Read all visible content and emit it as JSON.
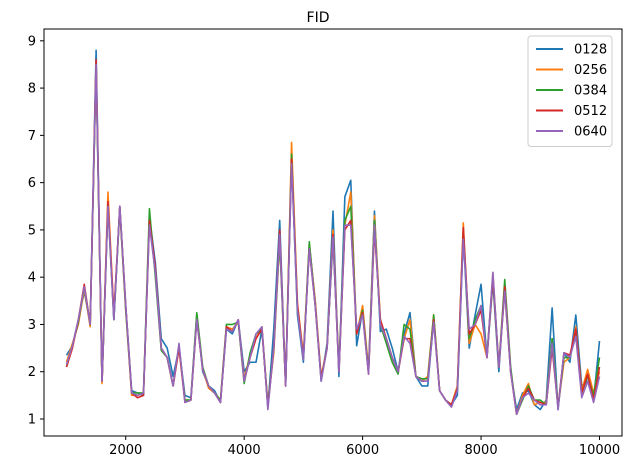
{
  "chart_data": {
    "type": "line",
    "title": "FID",
    "xlabel": "",
    "ylabel": "",
    "xlim": [
      620,
      10380
    ],
    "ylim": [
      0.64,
      9.25
    ],
    "xticks": [
      2000,
      4000,
      6000,
      8000,
      10000
    ],
    "xtick_labels": [
      "2000",
      "4000",
      "6000",
      "8000",
      "10000"
    ],
    "yticks": [
      1,
      2,
      3,
      4,
      5,
      6,
      7,
      8,
      9
    ],
    "ytick_labels": [
      "1",
      "2",
      "3",
      "4",
      "5",
      "6",
      "7",
      "8",
      "9"
    ],
    "grid": false,
    "legend_position": "top-right",
    "x": [
      1000,
      1100,
      1200,
      1300,
      1400,
      1500,
      1600,
      1700,
      1800,
      1900,
      2000,
      2100,
      2200,
      2300,
      2400,
      2500,
      2600,
      2700,
      2800,
      2900,
      3000,
      3100,
      3200,
      3300,
      3400,
      3500,
      3600,
      3700,
      3800,
      3900,
      4000,
      4100,
      4200,
      4300,
      4400,
      4500,
      4600,
      4700,
      4800,
      4900,
      5000,
      5100,
      5200,
      5300,
      5400,
      5500,
      5600,
      5700,
      5800,
      5900,
      6000,
      6100,
      6200,
      6300,
      6400,
      6500,
      6600,
      6700,
      6800,
      6900,
      7000,
      7100,
      7200,
      7300,
      7400,
      7500,
      7600,
      7700,
      7800,
      7900,
      8000,
      8100,
      8200,
      8300,
      8400,
      8500,
      8600,
      8700,
      8800,
      8900,
      9000,
      9100,
      9200,
      9300,
      9400,
      9500,
      9600,
      9700,
      9800,
      9900,
      10000
    ],
    "series": [
      {
        "name": "0128",
        "color": "#1f77b4",
        "values": [
          2.35,
          2.55,
          3.1,
          3.7,
          3.0,
          8.8,
          1.8,
          5.6,
          3.1,
          5.5,
          3.4,
          1.6,
          1.55,
          1.5,
          5.3,
          4.3,
          2.7,
          2.5,
          1.9,
          2.5,
          1.5,
          1.45,
          3.2,
          2.0,
          1.7,
          1.6,
          1.35,
          2.9,
          2.8,
          3.1,
          2.0,
          2.2,
          2.2,
          2.9,
          1.25,
          2.9,
          5.2,
          1.7,
          6.5,
          3.2,
          2.2,
          4.7,
          3.5,
          1.8,
          2.6,
          5.4,
          1.9,
          5.7,
          6.05,
          2.55,
          3.3,
          2.0,
          5.4,
          2.85,
          2.9,
          2.5,
          2.0,
          2.8,
          3.25,
          1.9,
          1.7,
          1.7,
          3.1,
          1.6,
          1.4,
          1.3,
          1.5,
          4.9,
          2.5,
          3.2,
          3.85,
          2.3,
          3.9,
          2.0,
          3.8,
          2.0,
          1.2,
          1.55,
          1.6,
          1.3,
          1.2,
          1.4,
          3.35,
          1.2,
          2.4,
          2.2,
          3.2,
          1.7,
          1.8,
          1.4,
          2.65
        ]
      },
      {
        "name": "0256",
        "color": "#ff7f0e",
        "values": [
          2.2,
          2.6,
          3.0,
          3.75,
          2.95,
          8.55,
          1.75,
          5.8,
          3.2,
          5.45,
          3.3,
          1.5,
          1.5,
          1.55,
          5.2,
          4.1,
          2.5,
          2.3,
          1.7,
          2.5,
          1.4,
          1.4,
          3.15,
          2.05,
          1.65,
          1.55,
          1.4,
          2.95,
          2.9,
          3.05,
          1.85,
          2.35,
          2.7,
          2.95,
          1.3,
          2.4,
          4.8,
          1.7,
          6.85,
          3.45,
          2.35,
          4.7,
          3.5,
          1.9,
          2.5,
          5.0,
          2.1,
          5.1,
          5.8,
          2.8,
          3.4,
          2.05,
          5.3,
          3.1,
          2.7,
          2.3,
          2.0,
          2.7,
          3.1,
          1.9,
          1.8,
          1.9,
          3.2,
          1.6,
          1.4,
          1.3,
          1.7,
          5.15,
          2.6,
          3.0,
          2.8,
          2.3,
          4.1,
          2.1,
          3.7,
          2.0,
          1.1,
          1.5,
          1.75,
          1.3,
          1.35,
          1.35,
          2.7,
          1.25,
          2.2,
          2.3,
          2.95,
          1.6,
          2.05,
          1.55,
          2.0
        ]
      },
      {
        "name": "0384",
        "color": "#2ca02c",
        "values": [
          2.1,
          2.55,
          3.05,
          3.8,
          3.0,
          8.4,
          1.8,
          5.5,
          3.1,
          5.45,
          3.3,
          1.55,
          1.55,
          1.55,
          5.45,
          4.0,
          2.45,
          2.3,
          1.7,
          2.55,
          1.4,
          1.4,
          3.25,
          2.1,
          1.7,
          1.55,
          1.4,
          3.0,
          3.0,
          3.05,
          1.75,
          2.4,
          2.8,
          2.9,
          1.3,
          2.5,
          4.8,
          1.7,
          6.6,
          3.3,
          2.3,
          4.75,
          3.4,
          1.85,
          2.5,
          4.8,
          2.1,
          5.2,
          5.5,
          2.8,
          3.3,
          2.0,
          5.2,
          3.0,
          2.6,
          2.2,
          1.95,
          3.0,
          2.9,
          1.9,
          1.85,
          1.85,
          3.2,
          1.6,
          1.4,
          1.3,
          1.65,
          5.0,
          2.7,
          3.1,
          3.4,
          2.35,
          4.0,
          2.1,
          3.95,
          2.1,
          1.1,
          1.4,
          1.7,
          1.4,
          1.4,
          1.3,
          2.7,
          1.25,
          2.3,
          2.3,
          2.85,
          1.55,
          1.9,
          1.5,
          2.3
        ]
      },
      {
        "name": "0512",
        "color": "#d62728",
        "values": [
          2.1,
          2.5,
          3.1,
          3.85,
          3.0,
          8.6,
          1.8,
          5.6,
          3.2,
          5.5,
          3.4,
          1.55,
          1.45,
          1.5,
          5.2,
          4.2,
          2.5,
          2.3,
          1.7,
          2.5,
          1.35,
          1.4,
          3.1,
          2.05,
          1.7,
          1.55,
          1.35,
          2.95,
          2.85,
          3.1,
          1.8,
          2.3,
          2.7,
          2.9,
          1.25,
          2.5,
          5.0,
          1.7,
          6.5,
          3.4,
          2.3,
          4.6,
          3.4,
          1.85,
          2.5,
          4.9,
          2.0,
          5.0,
          5.2,
          2.8,
          3.25,
          1.95,
          5.0,
          3.1,
          2.7,
          2.3,
          2.0,
          2.7,
          2.7,
          1.9,
          1.8,
          1.8,
          3.1,
          1.6,
          1.4,
          1.3,
          1.65,
          5.05,
          2.8,
          3.0,
          3.3,
          2.3,
          4.0,
          2.1,
          3.8,
          2.0,
          1.1,
          1.45,
          1.65,
          1.4,
          1.35,
          1.3,
          2.5,
          1.25,
          2.4,
          2.35,
          2.9,
          1.55,
          1.95,
          1.4,
          2.1
        ]
      },
      {
        "name": "0640",
        "color": "#9467bd",
        "values": [
          2.15,
          2.55,
          3.1,
          3.8,
          3.0,
          8.5,
          1.8,
          5.5,
          3.1,
          5.5,
          3.4,
          1.55,
          1.5,
          1.55,
          5.1,
          4.1,
          2.5,
          2.3,
          1.7,
          2.6,
          1.35,
          1.4,
          3.1,
          2.05,
          1.7,
          1.55,
          1.35,
          2.9,
          2.85,
          3.1,
          1.8,
          2.3,
          2.8,
          2.95,
          1.2,
          2.5,
          4.9,
          1.7,
          6.4,
          3.3,
          2.25,
          4.6,
          3.4,
          1.8,
          2.5,
          4.85,
          2.0,
          5.1,
          5.1,
          2.9,
          3.2,
          1.95,
          5.1,
          3.0,
          2.7,
          2.3,
          2.0,
          2.75,
          2.6,
          1.9,
          1.8,
          1.8,
          3.05,
          1.6,
          1.4,
          1.25,
          1.6,
          4.8,
          2.9,
          3.0,
          3.4,
          2.3,
          4.1,
          2.1,
          3.7,
          2.0,
          1.1,
          1.45,
          1.55,
          1.4,
          1.3,
          1.3,
          2.6,
          1.2,
          2.4,
          2.3,
          2.75,
          1.45,
          1.8,
          1.35,
          1.9
        ]
      }
    ]
  }
}
